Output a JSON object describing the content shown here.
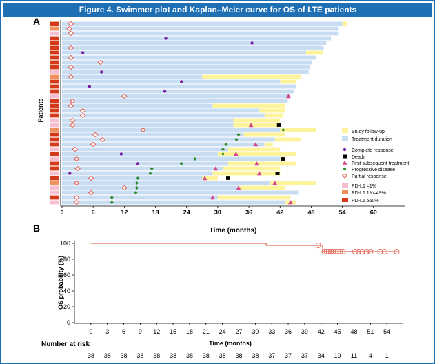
{
  "title": "Figure 4. Swimmer plot and Kaplan–Meier curve for OS of LTE patients",
  "colors": {
    "banner": "#1f6fb5",
    "treatment": "#c8ddf2",
    "followup": "#fdf39a",
    "complete": "#7a1fa2",
    "death": "#000000",
    "first_treatment": "#d6448c",
    "progressive": "#2e8b2e",
    "partial": "#e2574c",
    "pdl1_low": "#f7bfd0",
    "pdl1_mid": "#f0905a",
    "pdl1_high": "#d43a1a",
    "km_line": "#e26a5a"
  },
  "chart_data": [
    {
      "panel_label": "A",
      "type": "swimmer",
      "xlabel": "Time (months)",
      "ylabel": "Patients",
      "xlim": [
        0,
        66
      ],
      "xticks": [
        0,
        6,
        12,
        18,
        24,
        30,
        36,
        42,
        48,
        54,
        60
      ],
      "legend": [
        {
          "key": "followup",
          "label": "Study follow-up"
        },
        {
          "key": "treatment",
          "label": "Treatment duration"
        },
        {
          "key": "complete",
          "label": "Complete response"
        },
        {
          "key": "death",
          "label": "Death"
        },
        {
          "key": "first_treatment",
          "label": "First subsequent treatment"
        },
        {
          "key": "progressive",
          "label": "Progressive disease"
        },
        {
          "key": "partial",
          "label": "Partial response"
        },
        {
          "key": "pdl1_low",
          "label": "PD-L1 <1%"
        },
        {
          "key": "pdl1_mid",
          "label": "PD-L1 1%–49%"
        },
        {
          "key": "pdl1_high",
          "label": "PD-L1 ≥50%"
        }
      ],
      "patients": [
        {
          "pdl1": "high",
          "treatment": 54.0,
          "followup": 55.0,
          "partial": 1.7
        },
        {
          "pdl1": "mid",
          "treatment": 53.3,
          "followup": 53.3,
          "partial": 1.4
        },
        {
          "pdl1": "low",
          "treatment": 53.3,
          "followup": 53.3,
          "partial": 1.7
        },
        {
          "pdl1": "high",
          "treatment": 51.8,
          "followup": 51.8,
          "complete": 20.0
        },
        {
          "pdl1": "high",
          "treatment": 50.9,
          "followup": 50.9,
          "complete": 36.6
        },
        {
          "pdl1": "high",
          "treatment": 50.4,
          "followup": 50.4,
          "partial": 1.7
        },
        {
          "pdl1": "high",
          "treatment": 47.0,
          "followup": 50.2,
          "complete": 4.0
        },
        {
          "pdl1": "high",
          "treatment": 49.0,
          "followup": 49.0,
          "partial": 1.7
        },
        {
          "pdl1": "high",
          "treatment": 48.2,
          "followup": 48.2,
          "partial": 7.4
        },
        {
          "pdl1": "high",
          "treatment": 47.8,
          "followup": 47.8,
          "partial": 1.7
        },
        {
          "pdl1": "low",
          "treatment": 47.5,
          "followup": 47.5,
          "complete": 7.6
        },
        {
          "pdl1": "mid",
          "treatment": 27.0,
          "followup": 46.0,
          "partial": 1.7
        },
        {
          "pdl1": "high",
          "treatment": 42.0,
          "followup": 45.2,
          "complete": 23.0
        },
        {
          "pdl1": "high",
          "treatment": 45.1,
          "followup": 45.1,
          "complete": 5.3
        },
        {
          "pdl1": "high",
          "treatment": 44.6,
          "followup": 44.6,
          "complete": 19.8
        },
        {
          "pdl1": "low",
          "treatment": 44.0,
          "followup": 44.0,
          "partial": 12.0,
          "first_treatment": 43.6
        },
        {
          "pdl1": "high",
          "treatment": 43.5,
          "followup": 43.5,
          "partial": 2.0
        },
        {
          "pdl1": "high",
          "treatment": 29.0,
          "followup": 43.0,
          "partial": 1.7
        },
        {
          "pdl1": "high",
          "treatment": 38.0,
          "followup": 43.0,
          "partial": 4.0
        },
        {
          "pdl1": "high",
          "treatment": 39.0,
          "followup": 42.5,
          "partial": 4.0
        },
        {
          "pdl1": "low",
          "treatment": 33.0,
          "followup": 42.0,
          "partial": 2.0
        },
        {
          "pdl1": "low",
          "treatment": 33.0,
          "followup": 42.0,
          "partial": 2.0,
          "first_treatment": 36.4,
          "death": 41.8
        },
        {
          "pdl1": "mid",
          "treatment": 42.0,
          "followup": 49.0,
          "partial": 15.6,
          "progressive": 42.6
        },
        {
          "pdl1": "high",
          "treatment": 35.0,
          "followup": 43.0,
          "partial": 6.4,
          "progressive": 34.0
        },
        {
          "pdl1": "high",
          "treatment": 41.0,
          "followup": 46.0,
          "partial": 7.8,
          "progressive": 33.6
        },
        {
          "pdl1": "high",
          "treatment": 39.0,
          "followup": 40.6,
          "partial": 6.0,
          "progressive": 31.6,
          "first_treatment": 37.3
        },
        {
          "pdl1": "low",
          "treatment": 32.0,
          "followup": 42.0,
          "partial": 2.5,
          "progressive": 31.0
        },
        {
          "pdl1": "high",
          "treatment": 30.0,
          "followup": 45.0,
          "complete": 11.4,
          "progressive": 31.0,
          "first_treatment": 33.5
        },
        {
          "pdl1": "low",
          "treatment": 42.0,
          "followup": 43.0,
          "partial": 2.8,
          "progressive": 25.6,
          "death": 42.5
        },
        {
          "pdl1": "high",
          "treatment": 32.0,
          "followup": 45.0,
          "complete": 14.6,
          "progressive": 23.0,
          "first_treatment": 37.5
        },
        {
          "pdl1": "high",
          "treatment": 31.0,
          "followup": 42.0,
          "partial": 3.0,
          "progressive": 17.3,
          "first_treatment": 29.6
        },
        {
          "pdl1": "low",
          "treatment": 29.0,
          "followup": 42.0,
          "complete": 1.5,
          "progressive": 17.0,
          "first_treatment": 38.0,
          "death": 41.5
        },
        {
          "pdl1": "high",
          "treatment": 27.0,
          "followup": 30.0,
          "partial": 5.6,
          "progressive": 14.6,
          "first_treatment": 27.5,
          "death": 32.0
        },
        {
          "pdl1": "mid",
          "treatment": 40.0,
          "followup": 49.0,
          "partial": 2.8,
          "progressive": 14.4,
          "first_treatment": 41.0
        },
        {
          "pdl1": "low",
          "treatment": 34.0,
          "followup": 43.0,
          "partial": 12.0,
          "progressive": 14.4,
          "first_treatment": 34.0
        },
        {
          "pdl1": "low",
          "treatment": 45.5,
          "followup": 45.5,
          "partial": 5.6,
          "progressive": 14.2
        },
        {
          "pdl1": "high",
          "treatment": 30.0,
          "followup": 44.0,
          "partial": 2.8,
          "progressive": 9.6,
          "first_treatment": 29.0
        },
        {
          "pdl1": "low",
          "treatment": 43.0,
          "followup": 45.0,
          "partial": 2.8,
          "progressive": 9.6,
          "first_treatment": 44.0
        }
      ]
    },
    {
      "panel_label": "B",
      "type": "line",
      "xlabel": "Time (months)",
      "ylabel": "OS probability (%)",
      "xlim": [
        -3,
        57
      ],
      "ylim": [
        0,
        100
      ],
      "xticks": [
        0,
        3,
        6,
        9,
        12,
        15,
        18,
        21,
        24,
        27,
        30,
        33,
        36,
        39,
        42,
        45,
        48,
        51,
        54
      ],
      "yticks": [
        0,
        20,
        40,
        60,
        80,
        100
      ],
      "steps": [
        {
          "x": 0,
          "y": 100
        },
        {
          "x": 32,
          "y": 100
        },
        {
          "x": 32,
          "y": 97.4
        },
        {
          "x": 42.3,
          "y": 97.4
        },
        {
          "x": 42.3,
          "y": 89.5
        },
        {
          "x": 56,
          "y": 89.5
        }
      ],
      "censored": [
        {
          "x": 41.5,
          "y": 97.4
        },
        {
          "x": 42.6,
          "y": 89.5
        },
        {
          "x": 43.0,
          "y": 89.5
        },
        {
          "x": 43.4,
          "y": 89.5
        },
        {
          "x": 43.8,
          "y": 89.5
        },
        {
          "x": 44.2,
          "y": 89.5
        },
        {
          "x": 44.7,
          "y": 89.5
        },
        {
          "x": 45.1,
          "y": 89.5
        },
        {
          "x": 45.5,
          "y": 89.5
        },
        {
          "x": 46.0,
          "y": 89.5
        },
        {
          "x": 48.2,
          "y": 89.5
        },
        {
          "x": 48.8,
          "y": 89.5
        },
        {
          "x": 49.5,
          "y": 89.5
        },
        {
          "x": 50.3,
          "y": 89.5
        },
        {
          "x": 51.0,
          "y": 89.5
        },
        {
          "x": 52.8,
          "y": 89.5
        },
        {
          "x": 53.6,
          "y": 89.5
        },
        {
          "x": 55.8,
          "y": 89.5
        }
      ],
      "risk_label": "Number at risk",
      "at_risk": [
        38,
        38,
        38,
        38,
        38,
        38,
        38,
        38,
        38,
        38,
        38,
        37,
        37,
        37,
        34,
        19,
        11,
        4,
        1
      ]
    }
  ]
}
